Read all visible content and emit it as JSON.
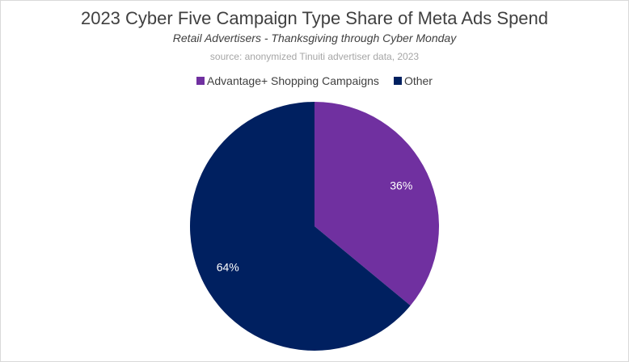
{
  "chart_data": {
    "type": "pie",
    "title": "2023 Cyber Five Campaign Type Share of Meta Ads Spend",
    "subtitle": "Retail Advertisers  - Thanksgiving through Cyber Monday",
    "source": "source: anonymized Tinuiti advertiser data, 2023",
    "legend_position": "top",
    "slices": [
      {
        "name": "Advantage+ Shopping Campaigns",
        "value": 36,
        "label": "36%",
        "color": "#7030a0"
      },
      {
        "name": "Other",
        "value": 64,
        "label": "64%",
        "color": "#002060"
      }
    ]
  }
}
